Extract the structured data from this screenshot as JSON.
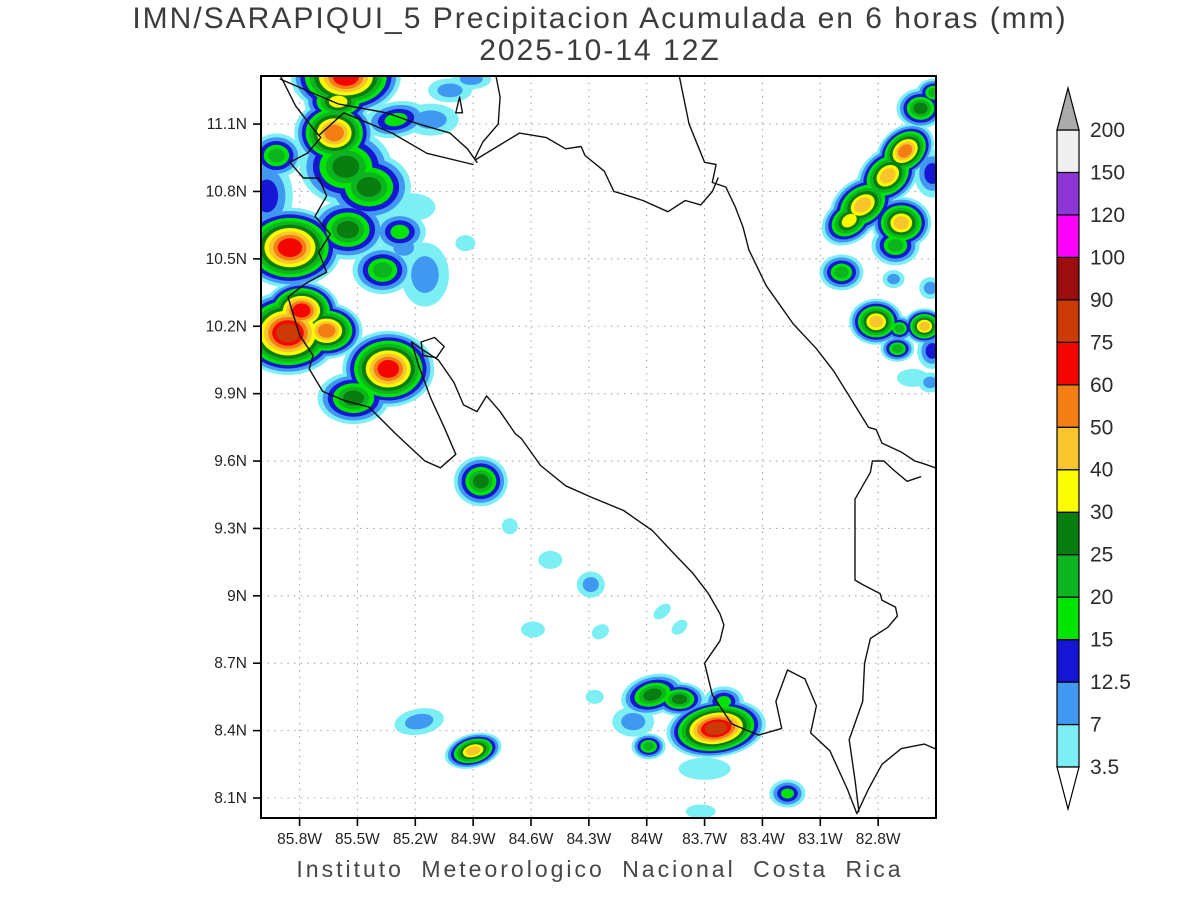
{
  "header": {
    "title_line1": "IMN/SARAPIQUI_5 Precipitacion Acumulada en 6 horas (mm)",
    "title_line2": "2025-10-14 12Z"
  },
  "footer": {
    "credit": "Instituto Meteorologico Nacional Costa Rica"
  },
  "chart_data": {
    "type": "heatmap",
    "subtype": "filled-contour-precipitation-map",
    "title": "IMN/SARAPIQUI_5 Precipitacion Acumulada en 6 horas (mm)",
    "subtitle": "2025-10-14 12Z",
    "footer": "Instituto Meteorologico Nacional Costa Rica",
    "units": "mm",
    "extent": {
      "lon_min": -86.0,
      "lon_max": -82.5,
      "lat_min": 8.011,
      "lat_max": 11.314
    },
    "x_axis": {
      "ticks": [
        "85.8W",
        "85.5W",
        "85.2W",
        "84.9W",
        "84.6W",
        "84.3W",
        "84W",
        "83.7W",
        "83.4W",
        "83.1W",
        "82.8W"
      ],
      "values": [
        -85.8,
        -85.5,
        -85.2,
        -84.9,
        -84.6,
        -84.3,
        -84.0,
        -83.7,
        -83.4,
        -83.1,
        -82.8
      ]
    },
    "y_axis": {
      "ticks": [
        "11.1N",
        "10.8N",
        "10.5N",
        "10.2N",
        "9.9N",
        "9.6N",
        "9.3N",
        "9N",
        "8.7N",
        "8.4N",
        "8.1N"
      ],
      "values": [
        11.1,
        10.8,
        10.5,
        10.2,
        9.9,
        9.6,
        9.3,
        9.0,
        8.7,
        8.4,
        8.1
      ]
    },
    "grid": {
      "shown": true,
      "style": "dotted",
      "color": "#ACACAC"
    },
    "legend": {
      "position": "right",
      "boundaries": [
        3.5,
        7,
        12.5,
        15,
        20,
        25,
        30,
        40,
        50,
        60,
        75,
        90,
        100,
        120,
        150,
        200
      ],
      "band_colors": [
        "#7CEFF5",
        "#4098F0",
        "#1616D4",
        "#00E402",
        "#0CB41F",
        "#0A7D11",
        "#FCFC00",
        "#F8C52C",
        "#F57E14",
        "#F50500",
        "#CC3A08",
        "#9B0D0E",
        "#FB00FA",
        "#8E35D8",
        "#EFEFEF"
      ],
      "over_color": "#ABABAB",
      "under_color": "#FFFFFF"
    },
    "cells_format": [
      "lon",
      "lat",
      "peak_band_mm",
      "rx_px",
      "ry_px",
      "rot_deg"
    ],
    "cells": [
      [
        -85.56,
        11.31,
        60,
        55,
        38,
        0
      ],
      [
        -85.62,
        11.06,
        50,
        40,
        34,
        0
      ],
      [
        -85.56,
        10.91,
        25,
        46,
        38,
        0
      ],
      [
        -85.85,
        10.55,
        60,
        52,
        40,
        0
      ],
      [
        -85.79,
        10.27,
        60,
        38,
        30,
        0
      ],
      [
        -85.86,
        10.17,
        75,
        52,
        42,
        0
      ],
      [
        -85.66,
        10.18,
        50,
        36,
        28,
        0
      ],
      [
        -85.34,
        10.01,
        60,
        46,
        38,
        0
      ],
      [
        -85.55,
        10.63,
        25,
        38,
        30,
        0
      ],
      [
        -85.44,
        10.82,
        25,
        42,
        34,
        0
      ],
      [
        -85.28,
        10.62,
        15,
        26,
        20,
        0
      ],
      [
        -85.37,
        10.45,
        20,
        30,
        24,
        0
      ],
      [
        -85.15,
        10.43,
        7,
        24,
        32,
        0
      ],
      [
        -85.52,
        9.88,
        25,
        36,
        26,
        0
      ],
      [
        -84.94,
        10.57,
        3.5,
        10,
        8,
        0
      ],
      [
        -85.12,
        11.12,
        7,
        28,
        16,
        0
      ],
      [
        -85.3,
        11.12,
        15,
        32,
        18,
        -10
      ],
      [
        -85.6,
        11.2,
        30,
        34,
        22,
        0
      ],
      [
        -85.02,
        11.25,
        7,
        22,
        12,
        0
      ],
      [
        -85.97,
        10.78,
        12.5,
        26,
        38,
        0
      ],
      [
        -85.92,
        10.96,
        20,
        26,
        22,
        0
      ],
      [
        -85.22,
        10.73,
        3.5,
        24,
        14,
        0
      ],
      [
        -85.26,
        10.55,
        7,
        18,
        14,
        0
      ],
      [
        -82.66,
        10.98,
        50,
        32,
        24,
        -40
      ],
      [
        -82.75,
        10.87,
        40,
        34,
        26,
        -40
      ],
      [
        -82.88,
        10.74,
        40,
        36,
        26,
        -35
      ],
      [
        -82.95,
        10.67,
        30,
        30,
        22,
        -35
      ],
      [
        -82.68,
        10.66,
        40,
        30,
        26,
        0
      ],
      [
        -82.71,
        10.56,
        20,
        24,
        20,
        0
      ],
      [
        -82.58,
        11.17,
        25,
        24,
        20,
        0
      ],
      [
        -82.51,
        11.24,
        20,
        18,
        14,
        0
      ],
      [
        -82.52,
        10.88,
        12.5,
        18,
        24,
        0
      ],
      [
        -82.99,
        10.44,
        20,
        22,
        18,
        0
      ],
      [
        -82.72,
        10.41,
        7,
        11,
        9,
        0
      ],
      [
        -82.53,
        10.37,
        7,
        11,
        11,
        0
      ],
      [
        -82.81,
        10.22,
        40,
        27,
        23,
        0
      ],
      [
        -82.69,
        10.19,
        20,
        15,
        13,
        0
      ],
      [
        -82.56,
        10.2,
        40,
        21,
        18,
        0
      ],
      [
        -82.7,
        10.1,
        20,
        17,
        13,
        0
      ],
      [
        -82.52,
        10.09,
        12.5,
        15,
        18,
        0
      ],
      [
        -82.62,
        9.97,
        3.5,
        16,
        9,
        0
      ],
      [
        -82.53,
        9.95,
        7,
        12,
        10,
        0
      ],
      [
        -84.86,
        9.51,
        25,
        27,
        25,
        0
      ],
      [
        -84.71,
        9.31,
        3.5,
        8,
        8,
        0
      ],
      [
        -84.5,
        9.16,
        3.5,
        12,
        9,
        0
      ],
      [
        -84.29,
        9.05,
        7,
        14,
        13,
        0
      ],
      [
        -84.59,
        8.85,
        3.5,
        12,
        8,
        0
      ],
      [
        -84.24,
        8.84,
        3.5,
        9,
        7,
        -30
      ],
      [
        -83.92,
        8.93,
        3.5,
        10,
        6,
        -40
      ],
      [
        -83.83,
        8.86,
        3.5,
        9,
        6,
        -40
      ],
      [
        -84.91,
        11.3,
        7,
        20,
        10,
        0
      ],
      [
        -85.18,
        8.44,
        7,
        25,
        13,
        -10
      ],
      [
        -84.9,
        8.31,
        40,
        29,
        17,
        -15
      ],
      [
        -84.27,
        8.55,
        3.5,
        9,
        7,
        0
      ],
      [
        -83.97,
        8.56,
        25,
        32,
        20,
        -15
      ],
      [
        -83.83,
        8.54,
        25,
        26,
        17,
        0
      ],
      [
        -83.64,
        8.41,
        75,
        50,
        29,
        -8
      ],
      [
        -83.6,
        8.53,
        15,
        20,
        15,
        0
      ],
      [
        -83.99,
        8.33,
        20,
        17,
        13,
        0
      ],
      [
        -84.07,
        8.44,
        7,
        21,
        15,
        0
      ],
      [
        -83.7,
        8.23,
        3.5,
        26,
        11,
        0
      ],
      [
        -83.27,
        8.12,
        15,
        18,
        14,
        0
      ],
      [
        -83.72,
        8.04,
        3.5,
        15,
        7,
        0
      ]
    ],
    "coastlines": [
      [
        [
          -85.92,
          11.35
        ],
        [
          -85.82,
          11.18
        ],
        [
          -85.73,
          11.08
        ],
        [
          -85.69,
          11.04
        ],
        [
          -85.76,
          10.97
        ],
        [
          -85.85,
          10.93
        ],
        [
          -85.78,
          10.86
        ],
        [
          -85.7,
          10.86
        ],
        [
          -85.66,
          10.78
        ],
        [
          -85.72,
          10.69
        ],
        [
          -85.64,
          10.61
        ],
        [
          -85.7,
          10.53
        ],
        [
          -85.66,
          10.44
        ],
        [
          -85.77,
          10.39
        ],
        [
          -85.86,
          10.33
        ],
        [
          -85.8,
          10.16
        ],
        [
          -85.73,
          10.07
        ],
        [
          -85.75,
          10.01
        ],
        [
          -85.68,
          9.91
        ],
        [
          -85.57,
          9.87
        ],
        [
          -85.44,
          9.84
        ],
        [
          -85.3,
          9.72
        ],
        [
          -85.15,
          9.6
        ],
        [
          -85.07,
          9.57
        ],
        [
          -84.99,
          9.63
        ],
        [
          -85.05,
          9.75
        ],
        [
          -85.12,
          9.88
        ],
        [
          -85.18,
          10.02
        ],
        [
          -85.22,
          10.13
        ],
        [
          -85.17,
          10.1
        ],
        [
          -85.08,
          10.05
        ],
        [
          -85.0,
          9.95
        ],
        [
          -84.95,
          9.85
        ],
        [
          -84.88,
          9.82
        ],
        [
          -84.83,
          9.89
        ],
        [
          -84.76,
          9.82
        ],
        [
          -84.68,
          9.72
        ],
        [
          -84.65,
          9.7
        ],
        [
          -84.55,
          9.58
        ],
        [
          -84.42,
          9.49
        ],
        [
          -84.29,
          9.44
        ],
        [
          -84.12,
          9.38
        ],
        [
          -83.97,
          9.29
        ],
        [
          -83.85,
          9.18
        ],
        [
          -83.76,
          9.1
        ],
        [
          -83.68,
          9.01
        ],
        [
          -83.62,
          8.92
        ],
        [
          -83.6,
          8.87
        ],
        [
          -83.62,
          8.8
        ],
        [
          -83.7,
          8.7
        ],
        [
          -83.66,
          8.56
        ],
        [
          -83.56,
          8.43
        ],
        [
          -83.42,
          8.38
        ],
        [
          -83.3,
          8.41
        ],
        [
          -83.33,
          8.53
        ],
        [
          -83.27,
          8.67
        ],
        [
          -83.18,
          8.63
        ],
        [
          -83.12,
          8.51
        ],
        [
          -83.15,
          8.39
        ],
        [
          -83.05,
          8.31
        ],
        [
          -82.96,
          8.14
        ],
        [
          -82.91,
          8.03
        ],
        [
          -82.85,
          8.14
        ],
        [
          -82.78,
          8.25
        ],
        [
          -82.68,
          8.32
        ],
        [
          -82.56,
          8.34
        ],
        [
          -82.48,
          8.31
        ]
      ],
      [
        [
          -85.9,
          11.3
        ],
        [
          -85.6,
          11.19
        ],
        [
          -85.35,
          11.15
        ],
        [
          -85.18,
          11.1
        ],
        [
          -85.02,
          11.06
        ],
        [
          -84.93,
          10.99
        ],
        [
          -84.88,
          10.93
        ]
      ],
      [
        [
          -84.79,
          11.35
        ],
        [
          -84.76,
          11.22
        ],
        [
          -84.77,
          11.1
        ],
        [
          -84.85,
          11.02
        ],
        [
          -84.89,
          10.95
        ]
      ],
      [
        [
          -85.7,
          11.05
        ],
        [
          -85.57,
          11.15
        ],
        [
          -85.32,
          11.06
        ],
        [
          -85.14,
          10.97
        ],
        [
          -84.9,
          10.92
        ]
      ],
      [
        [
          -84.89,
          10.94
        ],
        [
          -84.66,
          11.06
        ],
        [
          -84.52,
          11.04
        ],
        [
          -84.42,
          10.99
        ],
        [
          -84.34,
          11.0
        ],
        [
          -84.32,
          10.96
        ],
        [
          -84.22,
          10.89
        ],
        [
          -84.17,
          10.8
        ],
        [
          -84.13,
          10.79
        ],
        [
          -84.02,
          10.76
        ],
        [
          -83.89,
          10.71
        ],
        [
          -83.8,
          10.76
        ],
        [
          -83.72,
          10.74
        ],
        [
          -83.66,
          10.8
        ],
        [
          -83.63,
          10.86
        ]
      ],
      [
        [
          -83.84,
          11.35
        ],
        [
          -83.78,
          11.1
        ],
        [
          -83.7,
          10.93
        ],
        [
          -83.64,
          10.92
        ],
        [
          -83.66,
          10.84
        ],
        [
          -83.59,
          10.82
        ],
        [
          -83.54,
          10.73
        ],
        [
          -83.5,
          10.64
        ],
        [
          -83.47,
          10.54
        ],
        [
          -83.38,
          10.38
        ],
        [
          -83.24,
          10.21
        ],
        [
          -83.12,
          10.1
        ],
        [
          -83.03,
          10.0
        ],
        [
          -82.85,
          9.75
        ],
        [
          -82.81,
          9.74
        ],
        [
          -82.78,
          9.68
        ],
        [
          -82.68,
          9.64
        ],
        [
          -82.61,
          9.6
        ],
        [
          -82.57,
          9.59
        ],
        [
          -82.47,
          9.56
        ]
      ],
      [
        [
          -82.58,
          9.53
        ],
        [
          -82.65,
          9.51
        ],
        [
          -82.72,
          9.56
        ],
        [
          -82.77,
          9.6
        ],
        [
          -82.83,
          9.6
        ],
        [
          -82.84,
          9.55
        ],
        [
          -82.92,
          9.43
        ],
        [
          -82.92,
          9.07
        ],
        [
          -82.88,
          9.05
        ],
        [
          -82.79,
          9.01
        ],
        [
          -82.78,
          8.98
        ],
        [
          -82.71,
          8.95
        ],
        [
          -82.7,
          8.91
        ],
        [
          -82.75,
          8.86
        ],
        [
          -82.84,
          8.81
        ],
        [
          -82.87,
          8.7
        ],
        [
          -82.88,
          8.53
        ],
        [
          -82.95,
          8.36
        ],
        [
          -82.92,
          8.18
        ],
        [
          -82.9,
          8.04
        ]
      ],
      [
        [
          -85.17,
          10.13
        ],
        [
          -85.1,
          10.15
        ],
        [
          -85.05,
          10.11
        ],
        [
          -85.09,
          10.06
        ],
        [
          -85.16,
          10.07
        ],
        [
          -85.17,
          10.13
        ]
      ],
      [
        [
          -84.99,
          11.15
        ],
        [
          -84.955,
          11.15
        ],
        [
          -84.97,
          11.22
        ],
        [
          -84.99,
          11.15
        ]
      ]
    ]
  }
}
